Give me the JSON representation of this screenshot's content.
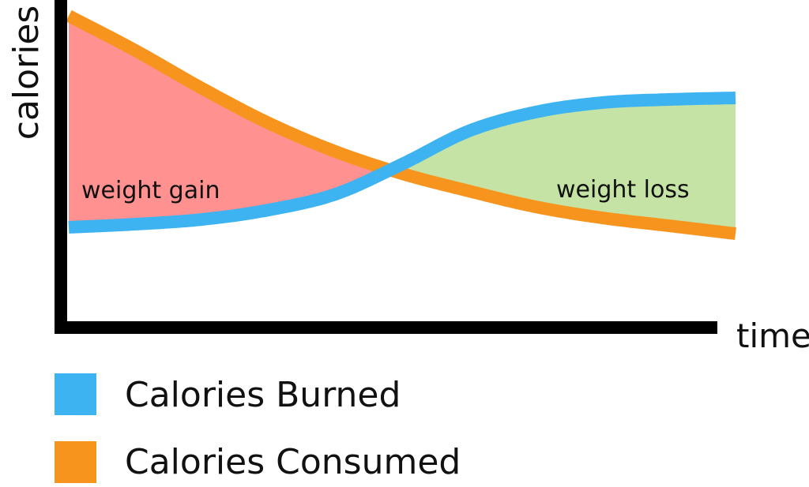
{
  "chart_data": {
    "type": "line",
    "xlabel": "time",
    "ylabel": "calories",
    "xlim": [
      0,
      10
    ],
    "ylim": [
      0,
      10
    ],
    "grid": false,
    "legend_placement": "bottom-left",
    "series": [
      {
        "name": "Calories Burned",
        "color": "#3db3f2",
        "x": [
          0,
          1,
          2,
          3,
          4,
          5,
          6,
          7,
          8,
          9,
          10
        ],
        "y": [
          2.8,
          2.9,
          3.05,
          3.35,
          3.85,
          4.8,
          5.85,
          6.45,
          6.75,
          6.85,
          6.9
        ]
      },
      {
        "name": "Calories Consumed",
        "color": "#f7941d",
        "x": [
          0,
          1,
          2,
          3,
          4,
          5,
          6,
          7,
          8,
          9,
          10
        ],
        "y": [
          9.5,
          8.4,
          7.2,
          6.1,
          5.2,
          4.5,
          3.95,
          3.45,
          3.1,
          2.85,
          2.6
        ]
      }
    ],
    "regions": [
      {
        "label": "weight gain",
        "color": "#ff9191"
      },
      {
        "label": "weight loss",
        "color": "#c4e3a4"
      }
    ]
  }
}
